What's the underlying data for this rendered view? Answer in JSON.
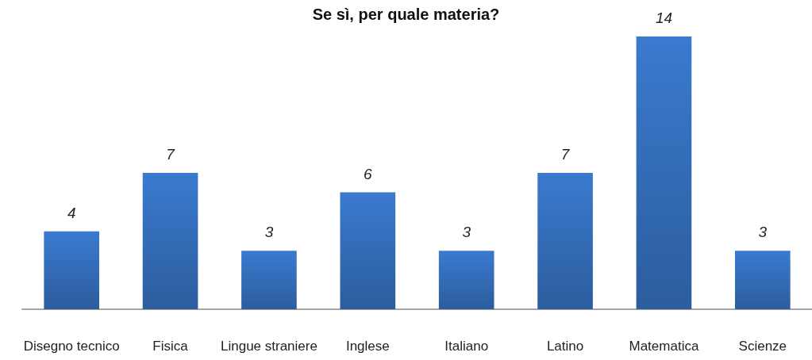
{
  "chart_data": {
    "type": "bar",
    "title": "Se sì, per quale materia?",
    "categories": [
      "Disegno tecnico",
      "Fisica",
      "Lingue straniere",
      "Inglese",
      "Italiano",
      "Latino",
      "Matematica",
      "Scienze"
    ],
    "values": [
      4,
      7,
      3,
      6,
      3,
      7,
      14,
      3
    ],
    "color": "#3671c0",
    "data_labels": true
  }
}
